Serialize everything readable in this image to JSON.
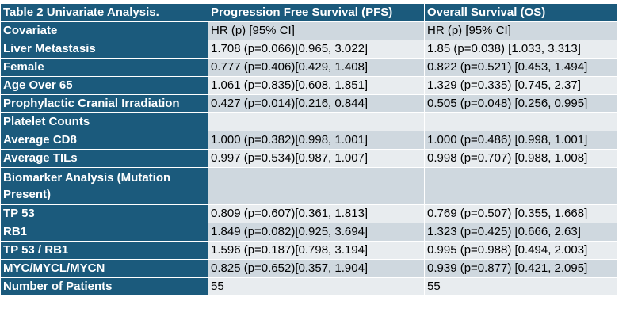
{
  "table": {
    "caption": "Table 2 Univariate Analysis.",
    "col_pfs": "Progression Free Survival (PFS)",
    "col_os": "Overall Survival (OS)",
    "rows": [
      {
        "label": "Covariate",
        "pfs": "HR (p) [95% CI]",
        "os": "HR (p) [95% CI]"
      },
      {
        "label": "Liver Metastasis",
        "pfs": "1.708 (p=0.066)[0.965, 3.022]",
        "os": "1.85 (p=0.038) [1.033, 3.313]"
      },
      {
        "label": "Female",
        "pfs": "0.777 (p=0.406)[0.429, 1.408]",
        "os": "0.822 (p=0.521) [0.453, 1.494]"
      },
      {
        "label": "Age Over 65",
        "pfs": "1.061 (p=0.835)[0.608, 1.851]",
        "os": "1.329 (p=0.335) [0.745, 2.37]"
      },
      {
        "label": "Prophylactic Cranial Irradiation",
        "pfs": "0.427 (p=0.014)[0.216, 0.844]",
        "os": "0.505 (p=0.048) [0.256, 0.995]"
      },
      {
        "label": "Platelet Counts",
        "pfs": "",
        "os": ""
      },
      {
        "label": "Average CD8",
        "pfs": "1.000 (p=0.382)[0.998, 1.001]",
        "os": "1.000 (p=0.486) [0.998, 1.001]"
      },
      {
        "label": "Average TILs",
        "pfs": "0.997 (p=0.534)[0.987, 1.007]",
        "os": "0.998 (p=0.707) [0.988, 1.008]"
      },
      {
        "label": "Biomarker Analysis (Mutation Present)",
        "pfs": "",
        "os": ""
      },
      {
        "label": "TP 53",
        "pfs": "0.809 (p=0.607)[0.361, 1.813]",
        "os": "0.769 (p=0.507) [0.355, 1.668]"
      },
      {
        "label": "RB1",
        "pfs": "1.849 (p=0.082)[0.925, 3.694]",
        "os": "1.323 (p=0.425) [0.666, 2.63]"
      },
      {
        "label": "TP 53 / RB1",
        "pfs": "1.596 (p=0.187)[0.798, 3.194]",
        "os": "0.995 (p=0.988) [0.494, 2.003]"
      },
      {
        "label": "MYC/MYCL/MYCN",
        "pfs": "0.825 (p=0.652)[0.357, 1.904]",
        "os": "0.939 (p=0.877) [0.421, 2.095]"
      },
      {
        "label": "Number of Patients",
        "pfs": "55",
        "os": "55"
      }
    ]
  }
}
